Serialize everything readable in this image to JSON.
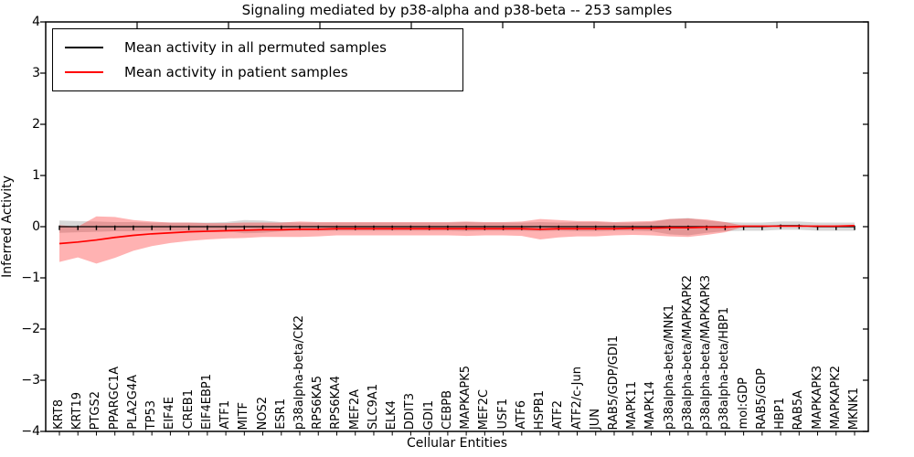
{
  "chart_data": {
    "type": "line",
    "title": "Signaling mediated by p38-alpha and p38-beta -- 253 samples",
    "xlabel": "Cellular Entities",
    "ylabel": "Inferred Activity",
    "ylim": [
      -4,
      4
    ],
    "yticks": [
      -4,
      -3,
      -2,
      -1,
      0,
      1,
      2,
      3,
      4
    ],
    "grid": false,
    "legend_position": "upper-left",
    "top_axis": {
      "range": [
        0,
        45
      ],
      "tick_values": [
        5,
        10,
        15,
        20,
        25,
        30,
        35,
        40
      ]
    },
    "categories": [
      "KRT8",
      "KRT19",
      "PTGS2",
      "PPARGC1A",
      "PLA2G4A",
      "TP53",
      "EIF4E",
      "CREB1",
      "EIF4EBP1",
      "ATF1",
      "MITF",
      "NOS2",
      "ESR1",
      "p38alpha-beta/CK2",
      "RPS6KA5",
      "RPS6KA4",
      "MEF2A",
      "SLC9A1",
      "ELK4",
      "DDIT3",
      "GDI1",
      "CEBPB",
      "MAPKAPK5",
      "MEF2C",
      "USF1",
      "ATF6",
      "HSPB1",
      "ATF2",
      "ATF2/c-Jun",
      "JUN",
      "RAB5/GDP/GDI1",
      "MAPK11",
      "MAPK14",
      "p38alpha-beta/MNK1",
      "p38alpha-beta/MAPKAPK2",
      "p38alpha-beta/MAPKAPK3",
      "p38alpha-beta/HBP1",
      "mol:GDP",
      "RAB5/GDP",
      "HBP1",
      "RAB5A",
      "MAPKAPK3",
      "MAPKAPK2",
      "MKNK1"
    ],
    "series": [
      {
        "name": "Mean activity in all permuted samples",
        "color": "#000000",
        "marker": "tick",
        "band_color": "#999999",
        "band_opacity": 0.38,
        "values": [
          0,
          0,
          0,
          0,
          0,
          0,
          0,
          0,
          0,
          0,
          0,
          0,
          0,
          0,
          0,
          0,
          0,
          0,
          0,
          0,
          0,
          0,
          0,
          0,
          0,
          0,
          0,
          0,
          0,
          0,
          0,
          0,
          0,
          0,
          0,
          0,
          0,
          0,
          0,
          0.02,
          0.02,
          0,
          0,
          0
        ],
        "band_halfwidth": [
          0.12,
          0.11,
          0.1,
          0.09,
          0.09,
          0.08,
          0.08,
          0.08,
          0.08,
          0.09,
          0.13,
          0.12,
          0.09,
          0.08,
          0.08,
          0.08,
          0.08,
          0.08,
          0.08,
          0.08,
          0.08,
          0.08,
          0.09,
          0.08,
          0.08,
          0.08,
          0.09,
          0.08,
          0.09,
          0.09,
          0.08,
          0.08,
          0.09,
          0.15,
          0.17,
          0.12,
          0.09,
          0.08,
          0.08,
          0.08,
          0.08,
          0.08,
          0.08,
          0.08
        ]
      },
      {
        "name": "Mean activity in patient samples",
        "color": "#ff0000",
        "marker": "none",
        "band_color": "#ff0000",
        "band_opacity": 0.3,
        "values": [
          -0.33,
          -0.3,
          -0.26,
          -0.21,
          -0.17,
          -0.14,
          -0.12,
          -0.1,
          -0.09,
          -0.08,
          -0.07,
          -0.06,
          -0.06,
          -0.05,
          -0.05,
          -0.04,
          -0.04,
          -0.04,
          -0.04,
          -0.04,
          -0.04,
          -0.04,
          -0.04,
          -0.04,
          -0.04,
          -0.04,
          -0.05,
          -0.04,
          -0.04,
          -0.04,
          -0.04,
          -0.03,
          -0.03,
          -0.02,
          -0.02,
          -0.01,
          -0.01,
          0.01,
          0.01,
          0.01,
          0.01,
          0.01,
          0.01,
          0.02
        ],
        "band_halfwidth": [
          0.36,
          0.3,
          0.46,
          0.4,
          0.3,
          0.24,
          0.2,
          0.18,
          0.16,
          0.15,
          0.15,
          0.14,
          0.14,
          0.15,
          0.14,
          0.13,
          0.13,
          0.13,
          0.13,
          0.13,
          0.13,
          0.13,
          0.14,
          0.13,
          0.13,
          0.14,
          0.2,
          0.17,
          0.15,
          0.15,
          0.13,
          0.13,
          0.14,
          0.17,
          0.18,
          0.15,
          0.1,
          0.01,
          0.01,
          0.01,
          0.01,
          0.01,
          0.01,
          0.01
        ]
      }
    ]
  }
}
